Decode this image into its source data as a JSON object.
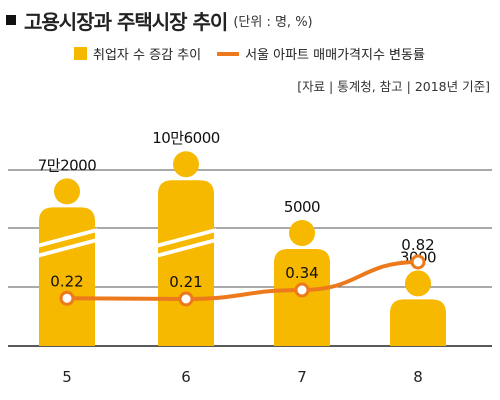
{
  "header": {
    "title": "고용시장과 주택시장 추이",
    "unit": "(단위 : 명, %)"
  },
  "legend": {
    "bar_label": "취업자 수 증감 추이",
    "line_label": "서울 아파트 매매가격지수 변동률"
  },
  "source": "[자료 | 통계청, 참고 | 2018년 기준]",
  "colors": {
    "bar": "#f7b800",
    "line": "#ec7a1c",
    "grid": "#555555"
  },
  "chart_data": {
    "type": "bar",
    "categories": [
      "5",
      "6",
      "7",
      "8"
    ],
    "series": [
      {
        "name": "취업자 수 증감 추이",
        "type": "bar",
        "values": [
          72000,
          106000,
          5000,
          3000
        ],
        "labels": [
          "7만2000",
          "10만6000",
          "5000",
          "3000"
        ]
      },
      {
        "name": "서울 아파트 매매가격지수 변동률",
        "type": "line",
        "values": [
          0.22,
          0.21,
          0.34,
          0.82
        ],
        "labels": [
          "0.22",
          "0.21",
          "0.34",
          "0.82"
        ]
      }
    ],
    "axis_broken": true,
    "grid": true,
    "legend_position": "top"
  }
}
